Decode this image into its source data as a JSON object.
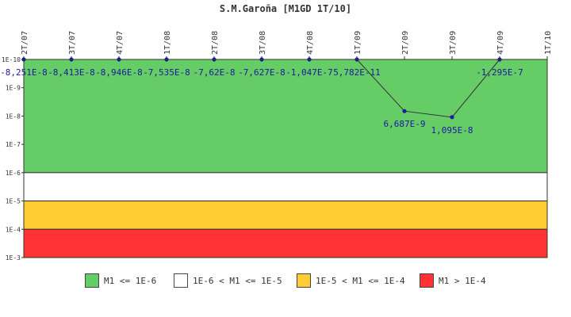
{
  "chart_data": {
    "type": "line",
    "title": "S.M.Garoña [M1GD 1T/10]",
    "y_scale": "log",
    "y_axis_inverted": true,
    "y_tick_labels": [
      "1E-10",
      "1E-9",
      "1E-8",
      "1E-7",
      "1E-6",
      "1E-5",
      "1E-4",
      "1E-3"
    ],
    "ylim": [
      1e-10,
      0.001
    ],
    "categories": [
      "2T/07",
      "3T/07",
      "4T/07",
      "1T/08",
      "2T/08",
      "3T/08",
      "4T/08",
      "1T/09",
      "2T/09",
      "3T/09",
      "4T/09",
      "1T/10"
    ],
    "values": [
      -8.251e-08,
      -8.413e-08,
      -8.946e-08,
      -7.535e-08,
      -7.62e-08,
      -7.627e-08,
      -1.047e-07,
      5.782e-11,
      6.687e-09,
      1.095e-08,
      -1.295e-07,
      null
    ],
    "data_labels": [
      "-8,251E-8",
      "-8,413E-8",
      "-8,946E-8",
      "-7,535E-8",
      "-7,62E-8",
      "-7,627E-8",
      "-1,047E-7",
      "5,782E-11",
      "6,687E-9",
      "1,095E-8",
      "-1,295E-7",
      ""
    ],
    "bands": [
      {
        "label": "M1 <= 1E-6",
        "from": 1e-10,
        "to": 1e-06,
        "color": "#66cc66"
      },
      {
        "label": "1E-6 < M1 <= 1E-5",
        "from": 1e-06,
        "to": 1e-05,
        "color": "#ffffff"
      },
      {
        "label": "1E-5 < M1 <= 1E-4",
        "from": 1e-05,
        "to": 0.0001,
        "color": "#ffcc33"
      },
      {
        "label": "M1 > 1E-4",
        "from": 0.0001,
        "to": 0.001,
        "color": "#ff3333"
      }
    ],
    "line_color": "#333333",
    "point_color": "#1a1aa0",
    "legend_position": "bottom"
  }
}
